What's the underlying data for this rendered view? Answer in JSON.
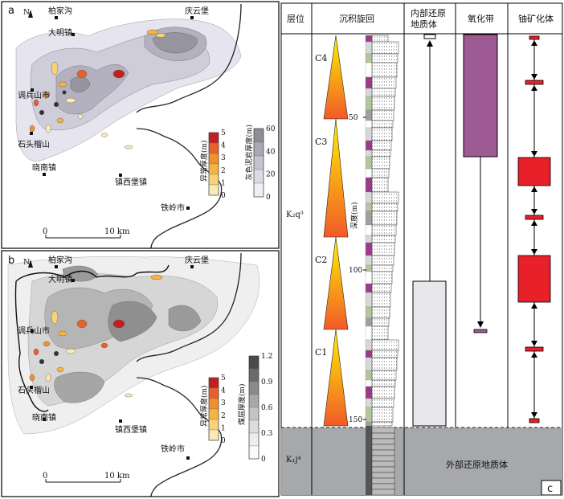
{
  "panel_a": {
    "letter": "a",
    "north": "N",
    "places": [
      "柏家沟",
      "大明镇",
      "庆云堡",
      "调兵山市",
      "石头榴山",
      "晓南镇",
      "镇西堡镇",
      "铁岭市"
    ],
    "scale": {
      "zero": "0",
      "ten": "10 km"
    },
    "legend_anomaly": {
      "title": "异常厚度(m)",
      "ticks": [
        "5",
        "4",
        "3",
        "2",
        "1",
        "0"
      ],
      "colors": [
        "#c0201e",
        "#e8602a",
        "#f0902e",
        "#f5b440",
        "#f7d27a",
        "#faeab6"
      ]
    },
    "legend_mudstone": {
      "title": "灰色泥岩厚度(m)",
      "ticks": [
        "60",
        "40",
        "20",
        "0"
      ],
      "colors": [
        "#8d8d98",
        "#a9a8b4",
        "#c4c2cf",
        "#dcdae6",
        "#efedf6"
      ]
    }
  },
  "panel_b": {
    "letter": "b",
    "north": "N",
    "places": [
      "柏家沟",
      "大明镇",
      "庆云堡",
      "调兵山市",
      "石头榴山",
      "晓南镇",
      "镇西堡镇",
      "铁岭市"
    ],
    "scale": {
      "zero": "0",
      "ten": "10 km"
    },
    "legend_anomaly": {
      "title": "异常厚度(m)",
      "ticks": [
        "5",
        "4",
        "3",
        "2",
        "1",
        "0"
      ],
      "colors": [
        "#c0201e",
        "#e8602a",
        "#f0902e",
        "#f5b440",
        "#f7d27a",
        "#faeab6"
      ]
    },
    "legend_coal": {
      "title": "煤层厚度(m)",
      "ticks": [
        "1.2",
        "0.9",
        "0.6",
        "0.3",
        "0"
      ],
      "colors": [
        "#4a4a4a",
        "#6a6a6a",
        "#8a8a8a",
        "#a8a8a8",
        "#c4c4c4",
        "#dcdcdc",
        "#ededed",
        "#fafafa"
      ]
    }
  },
  "panel_c": {
    "letter": "c",
    "headers": [
      "层位",
      "沉积旋回",
      "内部还原地质体",
      "氧化带",
      "铀矿化体"
    ],
    "strata": {
      "upper": "K₂q³",
      "lower": "K₁j⁴"
    },
    "cycles": [
      "C4",
      "C3",
      "C2",
      "C1"
    ],
    "depth_label": "深度(m)",
    "depth_ticks": [
      "50",
      "100",
      "150"
    ],
    "external_label": "外部还原地质体",
    "colors": {
      "oxidation": "#9e5a93",
      "ore": "#e8202a",
      "reduced_band": "#a7a8ac",
      "cycle_top": "#fff200",
      "cycle_bottom": "#f15a29"
    }
  }
}
